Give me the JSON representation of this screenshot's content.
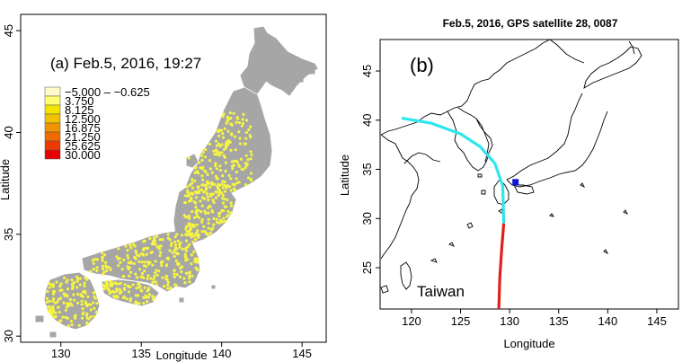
{
  "left_panel": {
    "annotation": "(a) Feb.5, 2016,  19:27",
    "xlabel": "Longitude",
    "ylabel": "Latitude",
    "xticks": [
      "130",
      "135",
      "140",
      "145"
    ],
    "yticks": [
      "30",
      "35",
      "40",
      "45"
    ],
    "xlim": [
      127.5,
      146.5
    ],
    "ylim": [
      29.7,
      45.8
    ],
    "legend": {
      "items": [
        {
          "label": "−5.000 – −0.625",
          "color": "#fffbc8"
        },
        {
          "label": "3.750",
          "color": "#ffff70"
        },
        {
          "label": "8.125",
          "color": "#f2e600"
        },
        {
          "label": "12.500",
          "color": "#f2c200"
        },
        {
          "label": "16.875",
          "color": "#f09400"
        },
        {
          "label": "21.250",
          "color": "#f06a00"
        },
        {
          "label": "25.625",
          "color": "#ee3a00"
        },
        {
          "label": "30.000",
          "color": "#e60000"
        }
      ]
    },
    "land_color": "#a6a6a6",
    "station_color": "#f5f542"
  },
  "right_panel": {
    "title": "Feb.5, 2016, GPS satellite 28, 0087",
    "panel_label": "(b)",
    "place_label": "Taiwan",
    "xlabel": "Longitude",
    "ylabel": "Latitude",
    "xticks": [
      "120",
      "125",
      "130",
      "135",
      "140",
      "145"
    ],
    "yticks": [
      "25",
      "30",
      "35",
      "40",
      "45"
    ],
    "xlim": [
      116.8,
      147.2
    ],
    "ylim": [
      20.8,
      48.2
    ],
    "track_colors": {
      "cyan": "#2ee6ee",
      "red": "#e0201e"
    },
    "marker_color": "#1016d8"
  },
  "chart_data": [
    {
      "type": "scatter",
      "title": "",
      "annotation": "(a) Feb.5, 2016,  19:27",
      "xlabel": "Longitude",
      "ylabel": "Latitude",
      "xlim": [
        127.5,
        146.5
      ],
      "ylim": [
        29.7,
        45.8
      ],
      "legend_placement": "top-left",
      "legend": [
        "−5.000 – −0.625",
        "3.750",
        "8.125",
        "12.500",
        "16.875",
        "21.250",
        "25.625",
        "30.000"
      ],
      "notes": "GNSS station values over Japan; most stations plotted in the 3.750 class (yellow)"
    },
    {
      "type": "line",
      "title": "Feb.5, 2016, GPS satellite 28, 0087",
      "xlabel": "Longitude",
      "ylabel": "Latitude",
      "xlim": [
        116.8,
        147.2
      ],
      "ylim": [
        20.8,
        48.2
      ],
      "series": [
        {
          "color": "#2ee6ee",
          "x": [
            119.0,
            122.0,
            125.0,
            127.0,
            128.5,
            129.3,
            129.4
          ],
          "y": [
            40.2,
            39.7,
            38.6,
            37.3,
            35.6,
            33.3,
            29.5
          ]
        },
        {
          "color": "#e0201e",
          "x": [
            129.4,
            129.2,
            129.0,
            128.9
          ],
          "y": [
            29.5,
            27.0,
            24.0,
            20.8
          ]
        }
      ],
      "markers": [
        {
          "x": 130.6,
          "y": 33.7,
          "color": "#1016d8"
        }
      ]
    }
  ]
}
